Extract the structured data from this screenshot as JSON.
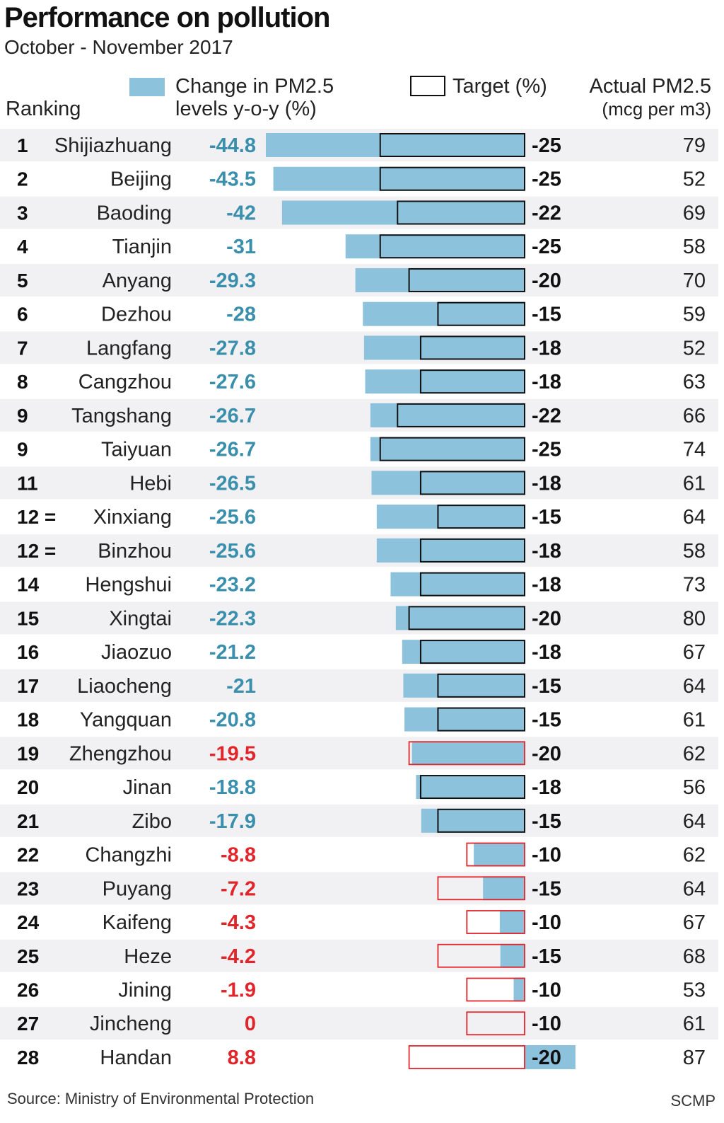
{
  "chart_data": {
    "type": "bar",
    "title": "Performance on pollution",
    "subtitle": "October - November 2017",
    "headers": {
      "ranking": "Ranking",
      "change_line1": "Change in PM2.5",
      "change_line2": "levels y-o-y (%)",
      "target": "Target (%)",
      "actual_line1": "Actual PM2.5",
      "actual_line2": "(mcg per m3)"
    },
    "source": "Source: Ministry of Environmental Protection",
    "credit": "SCMP",
    "colors": {
      "bar": "#8cc2dc",
      "met_text": "#3a8fad",
      "missed": "#e0252b",
      "met_outline": "#111111",
      "row_band": "#f1f1f3"
    },
    "rows": [
      {
        "rank": "1",
        "city": "Shijiazhuang",
        "change": -44.8,
        "target": -25,
        "actual": 79
      },
      {
        "rank": "2",
        "city": "Beijing",
        "change": -43.5,
        "target": -25,
        "actual": 52
      },
      {
        "rank": "3",
        "city": "Baoding",
        "change": -42,
        "target": -22,
        "actual": 69
      },
      {
        "rank": "4",
        "city": "Tianjin",
        "change": -31,
        "target": -25,
        "actual": 58
      },
      {
        "rank": "5",
        "city": "Anyang",
        "change": -29.3,
        "target": -20,
        "actual": 70
      },
      {
        "rank": "6",
        "city": "Dezhou",
        "change": -28,
        "target": -15,
        "actual": 59
      },
      {
        "rank": "7",
        "city": "Langfang",
        "change": -27.8,
        "target": -18,
        "actual": 52
      },
      {
        "rank": "8",
        "city": "Cangzhou",
        "change": -27.6,
        "target": -18,
        "actual": 63
      },
      {
        "rank": "9",
        "city": "Tangshang",
        "change": -26.7,
        "target": -22,
        "actual": 66
      },
      {
        "rank": "9",
        "city": "Taiyuan",
        "change": -26.7,
        "target": -25,
        "actual": 74
      },
      {
        "rank": "11",
        "city": "Hebi",
        "change": -26.5,
        "target": -18,
        "actual": 61
      },
      {
        "rank": "12 =",
        "city": "Xinxiang",
        "change": -25.6,
        "target": -15,
        "actual": 64
      },
      {
        "rank": "12 =",
        "city": "Binzhou",
        "change": -25.6,
        "target": -18,
        "actual": 58
      },
      {
        "rank": "14",
        "city": "Hengshui",
        "change": -23.2,
        "target": -18,
        "actual": 73
      },
      {
        "rank": "15",
        "city": "Xingtai",
        "change": -22.3,
        "target": -20,
        "actual": 80
      },
      {
        "rank": "16",
        "city": "Jiaozuo",
        "change": -21.2,
        "target": -18,
        "actual": 67
      },
      {
        "rank": "17",
        "city": "Liaocheng",
        "change": -21,
        "target": -15,
        "actual": 64
      },
      {
        "rank": "18",
        "city": "Yangquan",
        "change": -20.8,
        "target": -15,
        "actual": 61
      },
      {
        "rank": "19",
        "city": "Zhengzhou",
        "change": -19.5,
        "target": -20,
        "actual": 62
      },
      {
        "rank": "20",
        "city": "Jinan",
        "change": -18.8,
        "target": -18,
        "actual": 56
      },
      {
        "rank": "21",
        "city": "Zibo",
        "change": -17.9,
        "target": -15,
        "actual": 64
      },
      {
        "rank": "22",
        "city": "Changzhi",
        "change": -8.8,
        "target": -10,
        "actual": 62
      },
      {
        "rank": "23",
        "city": "Puyang",
        "change": -7.2,
        "target": -15,
        "actual": 64
      },
      {
        "rank": "24",
        "city": "Kaifeng",
        "change": -4.3,
        "target": -10,
        "actual": 67
      },
      {
        "rank": "25",
        "city": "Heze",
        "change": -4.2,
        "target": -15,
        "actual": 68
      },
      {
        "rank": "26",
        "city": "Jining",
        "change": -1.9,
        "target": -10,
        "actual": 53
      },
      {
        "rank": "27",
        "city": "Jincheng",
        "change": 0,
        "target": -10,
        "actual": 61
      },
      {
        "rank": "28",
        "city": "Handan",
        "change": 8.8,
        "target": -20,
        "actual": 87
      }
    ]
  }
}
